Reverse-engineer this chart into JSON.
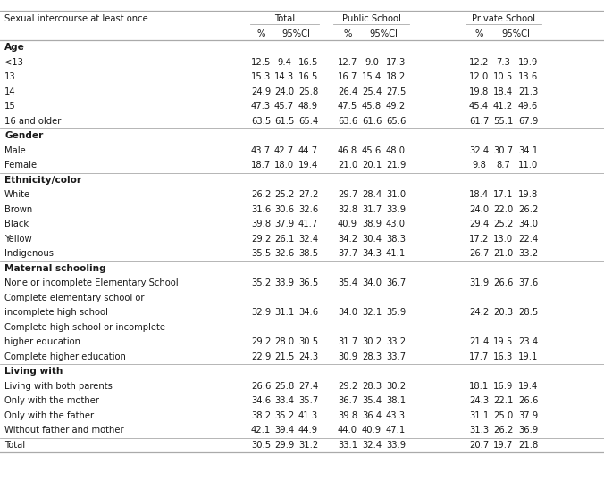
{
  "header_col": "Sexual intercourse at least once",
  "sections": [
    {
      "title": "Age",
      "rows": [
        {
          "label": "  <13",
          "values": [
            12.5,
            9.4,
            16.5,
            12.7,
            9.0,
            17.3,
            12.2,
            7.3,
            19.9
          ]
        },
        {
          "label": "  13",
          "values": [
            15.3,
            14.3,
            16.5,
            16.7,
            15.4,
            18.2,
            12.0,
            10.5,
            13.6
          ]
        },
        {
          "label": "  14",
          "values": [
            24.9,
            24.0,
            25.8,
            26.4,
            25.4,
            27.5,
            19.8,
            18.4,
            21.3
          ]
        },
        {
          "label": "  15",
          "values": [
            47.3,
            45.7,
            48.9,
            47.5,
            45.8,
            49.2,
            45.4,
            41.2,
            49.6
          ]
        },
        {
          "label": "  16 and older",
          "values": [
            63.5,
            61.5,
            65.4,
            63.6,
            61.6,
            65.6,
            61.7,
            55.1,
            67.9
          ]
        }
      ]
    },
    {
      "title": "Gender",
      "rows": [
        {
          "label": "  Male",
          "values": [
            43.7,
            42.7,
            44.7,
            46.8,
            45.6,
            48.0,
            32.4,
            30.7,
            34.1
          ]
        },
        {
          "label": "  Female",
          "values": [
            18.7,
            18.0,
            19.4,
            21.0,
            20.1,
            21.9,
            9.8,
            8.7,
            11.0
          ]
        }
      ]
    },
    {
      "title": "Ethnicity/color",
      "rows": [
        {
          "label": "  White",
          "values": [
            26.2,
            25.2,
            27.2,
            29.7,
            28.4,
            31.0,
            18.4,
            17.1,
            19.8
          ]
        },
        {
          "label": "  Brown",
          "values": [
            31.6,
            30.6,
            32.6,
            32.8,
            31.7,
            33.9,
            24.0,
            22.0,
            26.2
          ]
        },
        {
          "label": "  Black",
          "values": [
            39.8,
            37.9,
            41.7,
            40.9,
            38.9,
            43.0,
            29.4,
            25.2,
            34.0
          ]
        },
        {
          "label": "  Yellow",
          "values": [
            29.2,
            26.1,
            32.4,
            34.2,
            30.4,
            38.3,
            17.2,
            13.0,
            22.4
          ]
        },
        {
          "label": "  Indigenous",
          "values": [
            35.5,
            32.6,
            38.5,
            37.7,
            34.3,
            41.1,
            26.7,
            21.0,
            33.2
          ]
        }
      ]
    },
    {
      "title": "Maternal schooling",
      "rows": [
        {
          "label": "  None or incomplete Elementary School",
          "line2": null,
          "values": [
            35.2,
            33.9,
            36.5,
            35.4,
            34.0,
            36.7,
            31.9,
            26.6,
            37.6
          ]
        },
        {
          "label": "  Complete elementary school or",
          "line2": "incomplete high school",
          "values": [
            32.9,
            31.1,
            34.6,
            34.0,
            32.1,
            35.9,
            24.2,
            20.3,
            28.5
          ]
        },
        {
          "label": "  Complete high school or incomplete",
          "line2": "higher education",
          "values": [
            29.2,
            28.0,
            30.5,
            31.7,
            30.2,
            33.2,
            21.4,
            19.5,
            23.4
          ]
        },
        {
          "label": "  Complete higher education",
          "line2": null,
          "values": [
            22.9,
            21.5,
            24.3,
            30.9,
            28.3,
            33.7,
            17.7,
            16.3,
            19.1
          ]
        }
      ]
    },
    {
      "title": "Living with",
      "rows": [
        {
          "label": "  Living with both parents",
          "line2": null,
          "values": [
            26.6,
            25.8,
            27.4,
            29.2,
            28.3,
            30.2,
            18.1,
            16.9,
            19.4
          ]
        },
        {
          "label": "  Only with the mother",
          "line2": null,
          "values": [
            34.6,
            33.4,
            35.7,
            36.7,
            35.4,
            38.1,
            24.3,
            22.1,
            26.6
          ]
        },
        {
          "label": "  Only with the father",
          "line2": null,
          "values": [
            38.2,
            35.2,
            41.3,
            39.8,
            36.4,
            43.3,
            31.1,
            25.0,
            37.9
          ]
        },
        {
          "label": "  Without father and mother",
          "line2": null,
          "values": [
            42.1,
            39.4,
            44.9,
            44.0,
            40.9,
            47.1,
            31.3,
            26.2,
            36.9
          ]
        }
      ]
    }
  ],
  "total_row": {
    "label": "Total",
    "values": [
      30.5,
      29.9,
      31.2,
      33.1,
      32.4,
      33.9,
      20.7,
      19.7,
      21.8
    ]
  },
  "font_size": 7.2,
  "title_font_size": 7.6,
  "background_color": "#ffffff",
  "text_color": "#1a1a1a",
  "line_color": "#aaaaaa"
}
